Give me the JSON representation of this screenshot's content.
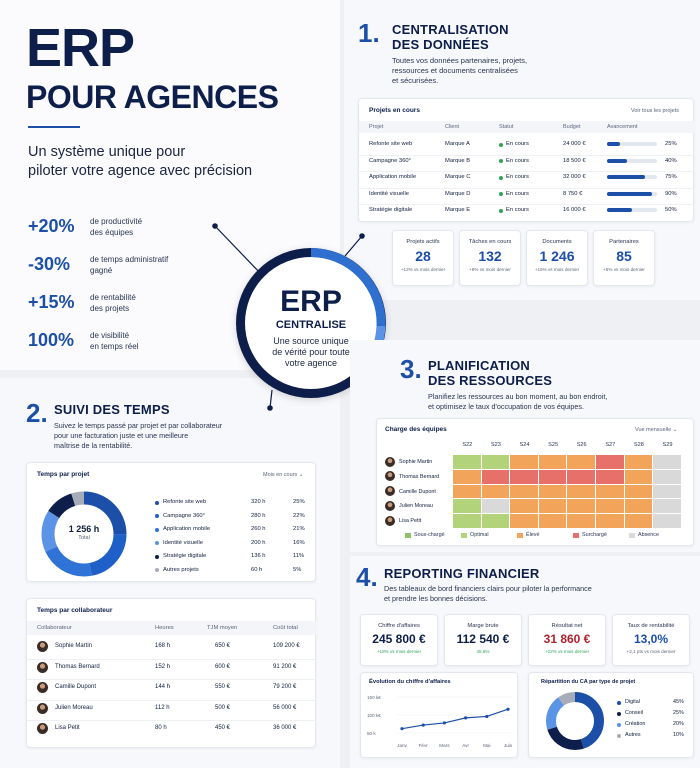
{
  "hero": {
    "title1": "ERP",
    "title2": "POUR AGENCES",
    "tagline1": "Un système unique pour",
    "tagline2": "piloter votre agence avec précision",
    "stats": [
      {
        "value": "+20%",
        "l1": "de productivité",
        "l2": "des équipes"
      },
      {
        "value": "-30%",
        "l1": "de temps administratif",
        "l2": "gagné"
      },
      {
        "value": "+15%",
        "l1": "de rentabilité",
        "l2": "des projets"
      },
      {
        "value": "100%",
        "l1": "de visibilité",
        "l2": "en temps réel"
      }
    ]
  },
  "center": {
    "title": "ERP",
    "subtitle": "CENTRALISE",
    "l1": "Une source unique",
    "l2": "de vérité pour toute",
    "l3": "votre agence"
  },
  "s1": {
    "num": "1.",
    "title1": "CENTRALISATION",
    "title2": "DES DONNÉES",
    "d1": "Toutes vos données partenaires, projets,",
    "d2": "ressources et documents centralisées",
    "d3": "et sécurisées.",
    "table": {
      "title": "Projets en cours",
      "link": "Voir tous les projets",
      "headers": [
        "Projet",
        "Client",
        "Statut",
        "Budget",
        "Avancement"
      ],
      "rows": [
        {
          "projet": "Refonte site web",
          "client": "Marque A",
          "statut": "En cours",
          "budget": "24 000 €",
          "pct": "25%",
          "p": 0.25
        },
        {
          "projet": "Campagne 360°",
          "client": "Marque B",
          "statut": "En cours",
          "budget": "18 500 €",
          "pct": "40%",
          "p": 0.4
        },
        {
          "projet": "Application mobile",
          "client": "Marque C",
          "statut": "En cours",
          "budget": "32 000 €",
          "pct": "75%",
          "p": 0.75
        },
        {
          "projet": "Identité visuelle",
          "client": "Marque D",
          "statut": "En cours",
          "budget": "8 750 €",
          "pct": "90%",
          "p": 0.9
        },
        {
          "projet": "Stratégie digitale",
          "client": "Marque E",
          "statut": "En cours",
          "budget": "16 000 €",
          "pct": "50%",
          "p": 0.5
        }
      ]
    },
    "kpis": [
      {
        "label": "Projets actifs",
        "value": "28",
        "sub": "+12% vs mois dernier"
      },
      {
        "label": "Tâches en cours",
        "value": "132",
        "sub": "+8% vs mois dernier"
      },
      {
        "label": "Documents",
        "value": "1 246",
        "sub": "+15% vs mois dernier"
      },
      {
        "label": "Partenaires",
        "value": "85",
        "sub": "+5% vs mois dernier"
      }
    ]
  },
  "s2": {
    "num": "2.",
    "title": "SUIVI DES TEMPS",
    "d1": "Suivez le temps passé par projet et par collaborateur",
    "d2": "pour une facturation juste et une meilleure",
    "d3": "maîtrise de la rentabilité.",
    "donut": {
      "title": "Temps par projet",
      "select": "Mois en cours",
      "center_value": "1 256 h",
      "center_label": "Total",
      "items": [
        {
          "name": "Refonte site web",
          "hours": "320 h",
          "pct": "25%",
          "p": 25,
          "color": "#1c4fa8"
        },
        {
          "name": "Campagne 360°",
          "hours": "280 h",
          "pct": "22%",
          "p": 22,
          "color": "#1f5fc8"
        },
        {
          "name": "Application mobile",
          "hours": "260 h",
          "pct": "21%",
          "p": 21,
          "color": "#2f73d6"
        },
        {
          "name": "Identité visuelle",
          "hours": "200 h",
          "pct": "16%",
          "p": 16,
          "color": "#5b93e6"
        },
        {
          "name": "Stratégie digitale",
          "hours": "136 h",
          "pct": "11%",
          "p": 11,
          "color": "#0d1e4a"
        },
        {
          "name": "Autres projets",
          "hours": "60 h",
          "pct": "5%",
          "p": 5,
          "color": "#a7adb8"
        }
      ]
    },
    "collab": {
      "title": "Temps par collaborateur",
      "headers": [
        "Collaborateur",
        "Heures",
        "TJM moyen",
        "Coût total"
      ],
      "rows": [
        {
          "name": "Sophie Martin",
          "h": "168 h",
          "tjm": "650 €",
          "cost": "109 200 €"
        },
        {
          "name": "Thomas Bernard",
          "h": "152 h",
          "tjm": "600 €",
          "cost": "91 200 €"
        },
        {
          "name": "Camille Dupont",
          "h": "144 h",
          "tjm": "550 €",
          "cost": "79 200 €"
        },
        {
          "name": "Julien Moreau",
          "h": "112 h",
          "tjm": "500 €",
          "cost": "56 000 €"
        },
        {
          "name": "Lisa Petit",
          "h": "80 h",
          "tjm": "450 €",
          "cost": "36 000 €"
        }
      ]
    }
  },
  "s3": {
    "num": "3.",
    "title1": "PLANIFICATION",
    "title2": "DES RESSOURCES",
    "d1": "Planifiez les ressources au bon moment, au bon endroit,",
    "d2": "et optimisez le taux d'occupation de vos équipes.",
    "heat": {
      "title": "Charge des équipes",
      "select": "Vue mensuelle",
      "weeks": [
        "S22",
        "S23",
        "S24",
        "S25",
        "S26",
        "S27",
        "S28",
        "S29"
      ],
      "people": [
        "Sophie Martin",
        "Thomas Bernard",
        "Camille Dupont",
        "Julien Moreau",
        "Lisa Petit"
      ],
      "grid": [
        [
          "o",
          "o",
          "e",
          "e",
          "e",
          "s",
          "e",
          "a"
        ],
        [
          "e",
          "s",
          "s",
          "s",
          "s",
          "s",
          "e",
          "a"
        ],
        [
          "e",
          "e",
          "e",
          "e",
          "e",
          "e",
          "e",
          "a"
        ],
        [
          "o",
          "a",
          "e",
          "e",
          "e",
          "e",
          "e",
          "a"
        ],
        [
          "o",
          "o",
          "e",
          "e",
          "e",
          "e",
          "e",
          "a"
        ]
      ],
      "legend": [
        {
          "key": "u",
          "label": "Sous-chargé",
          "color": "#8fc06a"
        },
        {
          "key": "o",
          "label": "Optimal",
          "color": "#b3d37a"
        },
        {
          "key": "e",
          "label": "Élevé",
          "color": "#f2a55a"
        },
        {
          "key": "s",
          "label": "Surchargé",
          "color": "#e8706a"
        },
        {
          "key": "a",
          "label": "Absence",
          "color": "#d9d9d9"
        }
      ]
    }
  },
  "s4": {
    "num": "4.",
    "title": "REPORTING FINANCIER",
    "d1": "Des tableaux de bord financiers clairs pour piloter la performance",
    "d2": "et prendre les bonnes décisions.",
    "kpis": [
      {
        "label": "Chiffre d'affaires",
        "value": "245 800 €",
        "sub": "+18% vs mois dernier"
      },
      {
        "label": "Marge brute",
        "value": "112 540 €",
        "sub": "45,8%"
      },
      {
        "label": "Résultat net",
        "value": "31 860 €",
        "sub": "+22% vs mois dernier"
      },
      {
        "label": "Taux de rentabilité",
        "value": "13,0%",
        "sub": "+2,1 pts vs mois dernier"
      }
    ],
    "line": {
      "title": "Évolution du chiffre d'affaires",
      "months": [
        "Janv",
        "Févr",
        "Mars",
        "Avr",
        "Mai",
        "Juin"
      ],
      "yticks": [
        "150 k€",
        "100 k€",
        "50 k"
      ]
    },
    "pie": {
      "title": "Répartition du CA par type de projet",
      "items": [
        {
          "name": "Digital",
          "pct": "45%",
          "p": 45,
          "color": "#1c4fa8"
        },
        {
          "name": "Conseil",
          "pct": "25%",
          "p": 25,
          "color": "#0d1e4a"
        },
        {
          "name": "Création",
          "pct": "20%",
          "p": 20,
          "color": "#5b93e6"
        },
        {
          "name": "Autres",
          "pct": "10%",
          "p": 10,
          "color": "#a7adb8"
        }
      ]
    }
  }
}
